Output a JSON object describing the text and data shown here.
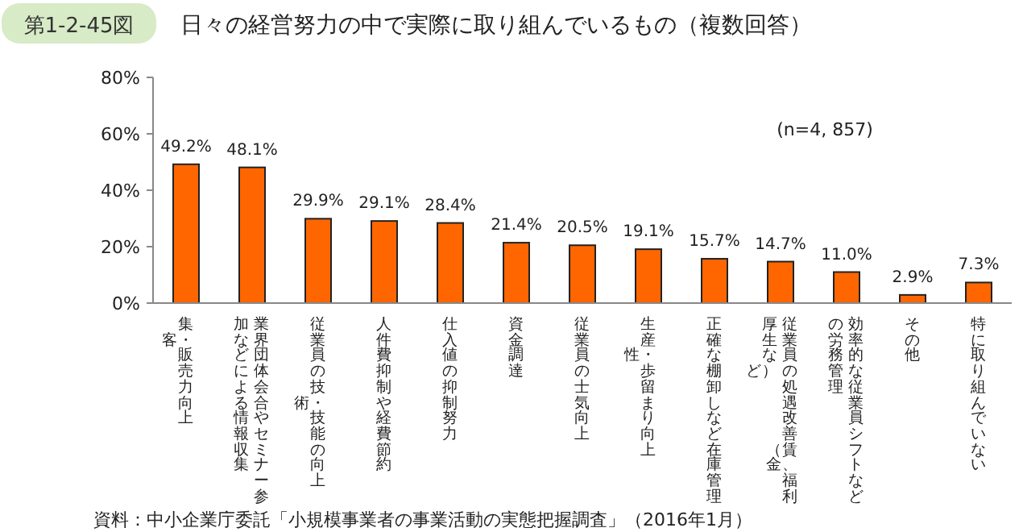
{
  "chart_data": {
    "type": "bar",
    "title": "日々の経営努力の中で実際に取り組んでいるもの（複数回答）",
    "categories": [
      "集客・販売力向上",
      "業界団体会合やセミナー参加などによる情報収集",
      "従業員の技術・技能の向上",
      "人件費抑制や経費節約",
      "仕入値の抑制努力",
      "資金調達",
      "従業員の士気向上",
      "生産性・歩留まり向上",
      "正確な棚卸しなど在庫管理",
      "従業員の処遇改善（賃金、福利厚生など）",
      "効率的な従業員シフトなどの労務管理",
      "その他",
      "特に取り組んでいない"
    ],
    "values": [
      49.2,
      48.1,
      29.9,
      29.1,
      28.4,
      21.4,
      20.5,
      19.1,
      15.7,
      14.7,
      11.0,
      2.9,
      7.3
    ],
    "value_labels": [
      "49.2%",
      "48.1%",
      "29.9%",
      "29.1%",
      "28.4%",
      "21.4%",
      "20.5%",
      "19.1%",
      "15.7%",
      "14.7%",
      "11.0%",
      "2.9%",
      "7.3%"
    ],
    "color": "#ff6600",
    "ylim": [
      0,
      80
    ],
    "yticks": [
      {
        "value": 0,
        "label": "0%"
      },
      {
        "value": 20,
        "label": "20%"
      },
      {
        "value": 40,
        "label": "40%"
      },
      {
        "value": 60,
        "label": "60%"
      },
      {
        "value": 80,
        "label": "80%"
      }
    ],
    "grid": false,
    "annotations": [
      "第1-2-45図",
      "(n=4, 857)",
      "資料：中小企業庁委託「小規模事業者の事業活動の実態把握調査」（2016年1月）"
    ]
  }
}
